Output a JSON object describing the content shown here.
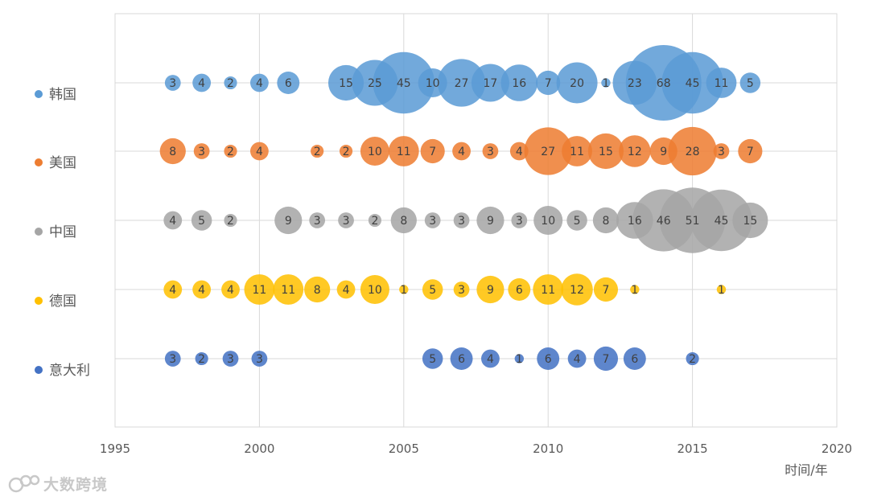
{
  "chart_data": {
    "type": "bubble",
    "x_axis": {
      "min": 1995,
      "max": 2020,
      "step": 5,
      "ticks": [
        "1995",
        "2000",
        "2005",
        "2010",
        "2015",
        "2020"
      ],
      "label": "时间/年"
    },
    "grid": true,
    "series": [
      {
        "name": "韩国",
        "color": "#5B9BD5",
        "points": [
          [
            1997,
            3
          ],
          [
            1998,
            4
          ],
          [
            1999,
            2
          ],
          [
            2000,
            4
          ],
          [
            2001,
            6
          ],
          [
            2003,
            15
          ],
          [
            2004,
            25
          ],
          [
            2005,
            45
          ],
          [
            2006,
            10
          ],
          [
            2007,
            27
          ],
          [
            2008,
            17
          ],
          [
            2009,
            16
          ],
          [
            2010,
            7
          ],
          [
            2011,
            20
          ],
          [
            2012,
            1
          ],
          [
            2013,
            23
          ],
          [
            2014,
            68
          ],
          [
            2015,
            45
          ],
          [
            2016,
            11
          ],
          [
            2017,
            5
          ]
        ]
      },
      {
        "name": "美国",
        "color": "#ED7D31",
        "points": [
          [
            1997,
            8
          ],
          [
            1998,
            3
          ],
          [
            1999,
            2
          ],
          [
            2000,
            4
          ],
          [
            2002,
            2
          ],
          [
            2003,
            2
          ],
          [
            2004,
            10
          ],
          [
            2005,
            11
          ],
          [
            2006,
            7
          ],
          [
            2007,
            4
          ],
          [
            2008,
            3
          ],
          [
            2009,
            4
          ],
          [
            2010,
            27
          ],
          [
            2011,
            11
          ],
          [
            2012,
            15
          ],
          [
            2013,
            12
          ],
          [
            2014,
            9
          ],
          [
            2015,
            28
          ],
          [
            2016,
            3
          ],
          [
            2017,
            7
          ]
        ]
      },
      {
        "name": "中国",
        "color": "#A5A5A5",
        "points": [
          [
            1997,
            4
          ],
          [
            1998,
            5
          ],
          [
            1999,
            2
          ],
          [
            2001,
            9
          ],
          [
            2002,
            3
          ],
          [
            2003,
            3
          ],
          [
            2004,
            2
          ],
          [
            2005,
            8
          ],
          [
            2006,
            3
          ],
          [
            2007,
            3
          ],
          [
            2008,
            9
          ],
          [
            2009,
            3
          ],
          [
            2010,
            10
          ],
          [
            2011,
            5
          ],
          [
            2012,
            8
          ],
          [
            2013,
            16
          ],
          [
            2014,
            46
          ],
          [
            2015,
            51
          ],
          [
            2016,
            45
          ],
          [
            2017,
            15
          ]
        ]
      },
      {
        "name": "德国",
        "color": "#FFC000",
        "points": [
          [
            1997,
            4
          ],
          [
            1998,
            4
          ],
          [
            1999,
            4
          ],
          [
            2000,
            11
          ],
          [
            2001,
            11
          ],
          [
            2002,
            8
          ],
          [
            2003,
            4
          ],
          [
            2004,
            10
          ],
          [
            2005,
            1
          ],
          [
            2006,
            5
          ],
          [
            2007,
            3
          ],
          [
            2008,
            9
          ],
          [
            2009,
            6
          ],
          [
            2010,
            11
          ],
          [
            2011,
            12
          ],
          [
            2012,
            7
          ],
          [
            2013,
            1
          ],
          [
            2016,
            1
          ]
        ]
      },
      {
        "name": "意大利",
        "color": "#4472C4",
        "points": [
          [
            1997,
            3
          ],
          [
            1998,
            2
          ],
          [
            1999,
            3
          ],
          [
            2000,
            3
          ],
          [
            2006,
            5
          ],
          [
            2007,
            6
          ],
          [
            2008,
            4
          ],
          [
            2009,
            1
          ],
          [
            2010,
            6
          ],
          [
            2011,
            4
          ],
          [
            2012,
            7
          ],
          [
            2013,
            6
          ],
          [
            2015,
            2
          ]
        ]
      }
    ]
  },
  "watermark": "大数跨境"
}
